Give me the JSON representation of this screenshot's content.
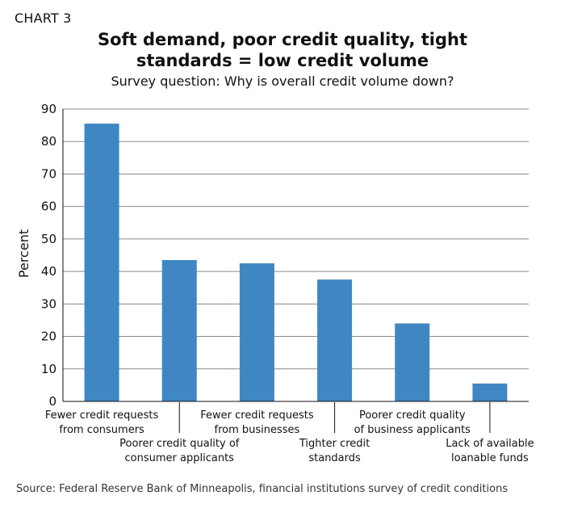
{
  "header": {
    "chart_label": "CHART 3",
    "title_line1": "Soft demand, poor credit quality, tight",
    "title_line2": "standards = low credit volume",
    "subtitle": "Survey question: Why is overall credit volume down?"
  },
  "footer": {
    "source": "Source: Federal Reserve Bank of Minneapolis, financial institutions survey of credit conditions"
  },
  "colors": {
    "bar": "#3F87C2",
    "grid": "#8a8a8a",
    "axis": "#111111"
  },
  "chart_data": {
    "type": "bar",
    "title": "Soft demand, poor credit quality, tight standards = low credit volume",
    "subtitle": "Survey question: Why is overall credit volume down?",
    "xlabel": "",
    "ylabel": "Percent",
    "ylim": [
      0,
      90
    ],
    "yticks": [
      0,
      10,
      20,
      30,
      40,
      50,
      60,
      70,
      80,
      90
    ],
    "grid": true,
    "categories": [
      [
        "Fewer credit requests",
        "from consumers"
      ],
      [
        "Poorer credit quality of",
        "consumer applicants"
      ],
      [
        "Fewer credit requests",
        "from businesses"
      ],
      [
        "Tighter credit",
        "standards"
      ],
      [
        "Poorer credit quality",
        "of business applicants"
      ],
      [
        "Lack of available",
        "loanable funds"
      ]
    ],
    "values": [
      85.5,
      43.5,
      42.5,
      37.5,
      24,
      5.5
    ]
  }
}
